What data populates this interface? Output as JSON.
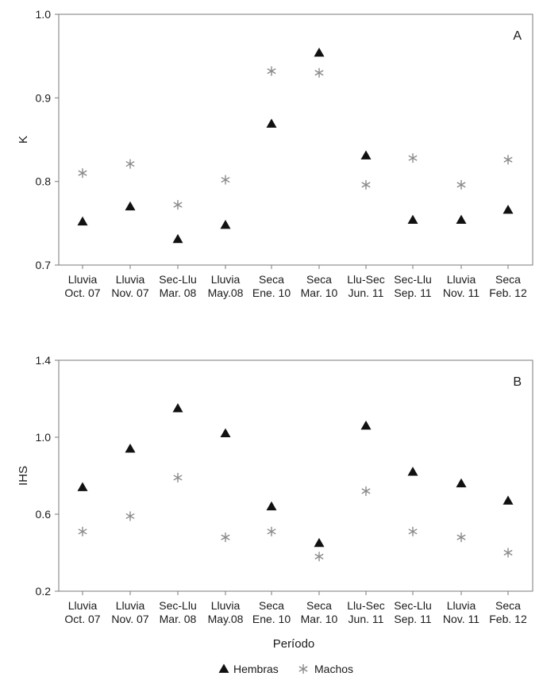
{
  "chart_data": [
    {
      "type": "scatter",
      "panel_label": "A",
      "ylabel": "K",
      "ylim": [
        0.7,
        1.0
      ],
      "yticks": [
        "0.7",
        "0.8",
        "0.9",
        "1.0"
      ],
      "categories": [
        {
          "season": "Lluvia",
          "date": "Oct. 07"
        },
        {
          "season": "Lluvia",
          "date": "Nov. 07"
        },
        {
          "season": "Sec-Llu",
          "date": "Mar. 08"
        },
        {
          "season": "Lluvia",
          "date": "May.08"
        },
        {
          "season": "Seca",
          "date": "Ene. 10"
        },
        {
          "season": "Seca",
          "date": "Mar. 10"
        },
        {
          "season": "Llu-Sec",
          "date": "Jun. 11"
        },
        {
          "season": "Sec-Llu",
          "date": "Sep. 11"
        },
        {
          "season": "Lluvia",
          "date": "Nov. 11"
        },
        {
          "season": "Seca",
          "date": "Feb. 12"
        }
      ],
      "series": [
        {
          "name": "Hembras",
          "marker": "triangle",
          "color": "#111111",
          "values": [
            0.752,
            0.77,
            0.731,
            0.748,
            0.869,
            0.954,
            0.831,
            0.754,
            0.754,
            0.766
          ]
        },
        {
          "name": "Machos",
          "marker": "asterisk",
          "color": "#8a8a8a",
          "values": [
            0.81,
            0.821,
            0.772,
            0.802,
            0.932,
            0.93,
            0.796,
            0.828,
            0.796,
            0.826
          ]
        }
      ]
    },
    {
      "type": "scatter",
      "panel_label": "B",
      "ylabel": "IHS",
      "ylim": [
        0.2,
        1.4
      ],
      "yticks": [
        "0.2",
        "0.6",
        "1.0",
        "1.4"
      ],
      "xlabel": "Período",
      "categories": [
        {
          "season": "Lluvia",
          "date": "Oct. 07"
        },
        {
          "season": "Lluvia",
          "date": "Nov. 07"
        },
        {
          "season": "Sec-Llu",
          "date": "Mar. 08"
        },
        {
          "season": "Lluvia",
          "date": "May.08"
        },
        {
          "season": "Seca",
          "date": "Ene. 10"
        },
        {
          "season": "Seca",
          "date": "Mar. 10"
        },
        {
          "season": "Llu-Sec",
          "date": "Jun. 11"
        },
        {
          "season": "Sec-Llu",
          "date": "Sep. 11"
        },
        {
          "season": "Lluvia",
          "date": "Nov. 11"
        },
        {
          "season": "Seca",
          "date": "Feb. 12"
        }
      ],
      "series": [
        {
          "name": "Hembras",
          "marker": "triangle",
          "color": "#111111",
          "values": [
            0.74,
            0.94,
            1.15,
            1.02,
            0.64,
            0.45,
            1.06,
            0.82,
            0.76,
            0.67
          ]
        },
        {
          "name": "Machos",
          "marker": "asterisk",
          "color": "#8a8a8a",
          "values": [
            0.51,
            0.59,
            0.79,
            0.48,
            0.51,
            0.38,
            0.72,
            0.51,
            0.48,
            0.4
          ]
        }
      ]
    }
  ],
  "legend": {
    "placement": "bottom-center",
    "items": [
      {
        "name": "Hembras",
        "marker": "triangle"
      },
      {
        "name": "Machos",
        "marker": "asterisk"
      }
    ]
  }
}
